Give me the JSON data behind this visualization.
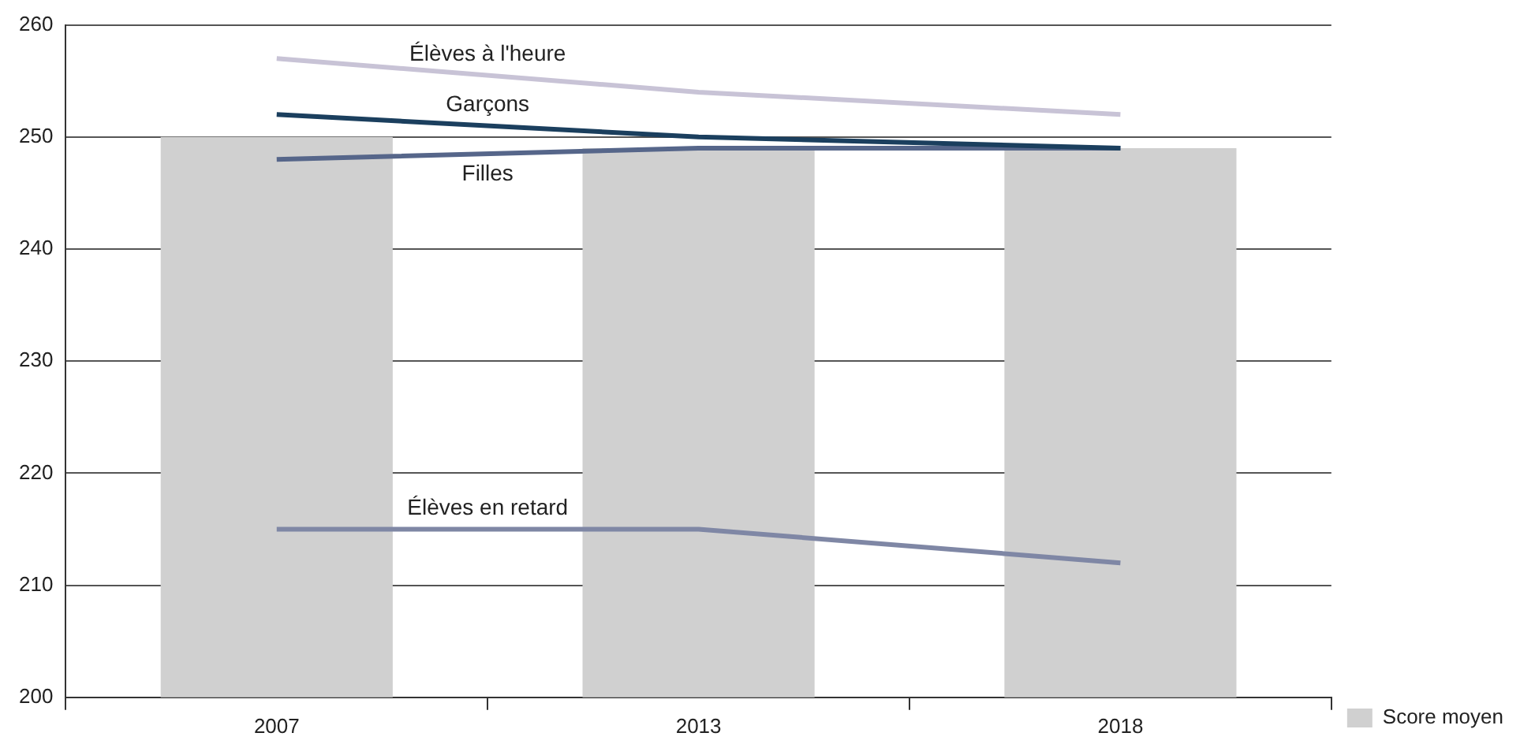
{
  "chart_data": {
    "type": "bar",
    "categories": [
      "2007",
      "2013",
      "2018"
    ],
    "series": [
      {
        "name": "Score moyen",
        "color": "#d0d0d0",
        "values": [
          250,
          249,
          249
        ]
      },
      {
        "name": "Élèves à l'heure",
        "type": "line",
        "color": "#c8c3d6",
        "values": [
          257,
          254,
          252
        ]
      },
      {
        "name": "Garçons",
        "type": "line",
        "color": "#1b3f5e",
        "values": [
          252,
          250,
          249
        ]
      },
      {
        "name": "Filles",
        "type": "line",
        "color": "#56668a",
        "values": [
          248,
          249,
          249
        ]
      },
      {
        "name": "Élèves en retard",
        "type": "line",
        "color": "#7f87a5",
        "values": [
          215,
          215,
          212
        ]
      }
    ],
    "ylim": [
      200,
      260
    ],
    "yticks": [
      200,
      210,
      220,
      230,
      240,
      250,
      260
    ],
    "grid": "y",
    "legend": "bottom right",
    "marker": "none",
    "line_style": "solid"
  }
}
